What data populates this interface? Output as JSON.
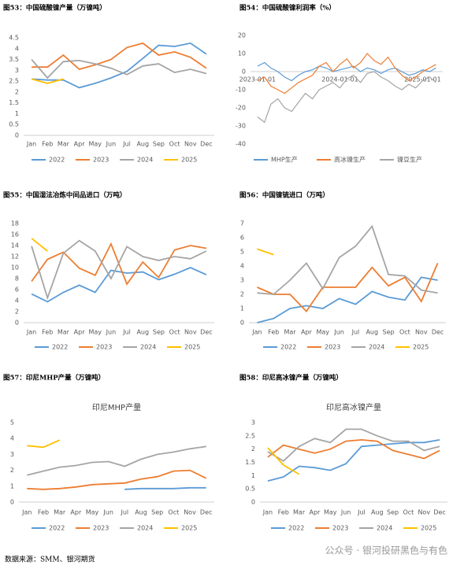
{
  "chart_data": [
    {
      "type": "line",
      "title": "图53：中国硫酸镍产量（万镍吨）",
      "categories": [
        "Jan",
        "Feb",
        "Mar",
        "Apr",
        "May",
        "Jun",
        "Jul",
        "Aug",
        "Sep",
        "Oct",
        "Nov",
        "Dec"
      ],
      "ylim": [
        0,
        4.5
      ],
      "yticks": [
        0,
        0.5,
        1,
        1.5,
        2,
        2.5,
        3,
        3.5,
        4,
        4.5
      ],
      "grid": false,
      "legend": "bottom",
      "series": [
        {
          "name": "2022",
          "color": "#5b9bd5",
          "values": [
            2.6,
            2.55,
            2.55,
            2.2,
            2.4,
            2.65,
            2.95,
            3.55,
            4.15,
            4.1,
            4.25,
            3.75
          ]
        },
        {
          "name": "2023",
          "color": "#ed7d31",
          "values": [
            3.15,
            3.15,
            3.7,
            3.05,
            3.25,
            3.5,
            4.05,
            4.25,
            3.7,
            3.85,
            3.6,
            3.1
          ]
        },
        {
          "name": "2024",
          "color": "#a5a5a5",
          "values": [
            3.5,
            2.65,
            3.4,
            3.45,
            3.3,
            3.1,
            2.8,
            3.2,
            3.3,
            2.9,
            3.05,
            2.85
          ]
        },
        {
          "name": "2025",
          "color": "#ffc000",
          "values": [
            2.6,
            2.4,
            2.6,
            null,
            null,
            null,
            null,
            null,
            null,
            null,
            null,
            null
          ]
        }
      ]
    },
    {
      "type": "line",
      "title": "图54：中国硫酸镍利润率（%）",
      "x": [
        "2023-01-01",
        "2023-02-01",
        "2023-03-01",
        "2023-04-01",
        "2023-05-01",
        "2023-06-01",
        "2023-07-01",
        "2023-08-01",
        "2023-09-01",
        "2023-10-01",
        "2023-11-01",
        "2023-12-01",
        "2024-01-01",
        "2024-02-01",
        "2024-03-01",
        "2024-04-01",
        "2024-05-01",
        "2024-06-01",
        "2024-07-01",
        "2024-08-01",
        "2024-09-01",
        "2024-10-01",
        "2024-11-01",
        "2024-12-01",
        "2025-01-01",
        "2025-02-01",
        "2025-03-01"
      ],
      "xlim": [
        "2022-12-01",
        "2025-03-31"
      ],
      "xticks": [
        "2023-01-01",
        "2024-01-01",
        "2025-01-01"
      ],
      "ylim": [
        -40,
        20
      ],
      "yticks": [
        20,
        10,
        0,
        -10,
        -20,
        -30,
        -40
      ],
      "grid": false,
      "legend": "bottom",
      "series": [
        {
          "name": "MHP生产",
          "color": "#5b9bd5",
          "values": [
            3,
            5,
            2,
            0,
            -3,
            -5,
            -2,
            0,
            1,
            3,
            2,
            0,
            1,
            2,
            3,
            0,
            2,
            1,
            -1,
            1,
            2,
            0,
            -2,
            -1,
            1,
            0,
            2
          ]
        },
        {
          "name": "高冰镍生产",
          "color": "#ed7d31",
          "values": [
            -5,
            -3,
            -8,
            -10,
            -12,
            -9,
            -6,
            -4,
            -2,
            3,
            5,
            0,
            4,
            7,
            2,
            5,
            10,
            6,
            4,
            8,
            2,
            -2,
            -5,
            -3,
            0,
            2,
            4
          ]
        },
        {
          "name": "镍豆生产",
          "color": "#a5a5a5",
          "values": [
            -25,
            -28,
            -18,
            -15,
            -20,
            -22,
            -17,
            -12,
            -15,
            -10,
            -8,
            -6,
            -9,
            -4,
            -2,
            -6,
            -1,
            0,
            -3,
            -5,
            -8,
            -10,
            -7,
            -9,
            -5,
            -3,
            -6
          ]
        }
      ]
    },
    {
      "type": "line",
      "title": "图55：中国湿法冶炼中间品进口（万吨）",
      "categories": [
        "Jan",
        "Feb",
        "Mar",
        "Apr",
        "May",
        "Jun",
        "Jul",
        "Aug",
        "Sep",
        "Oct",
        "Nov",
        "Dec"
      ],
      "ylim": [
        0,
        18
      ],
      "yticks": [
        0,
        2,
        4,
        6,
        8,
        10,
        12,
        14,
        16,
        18
      ],
      "grid": false,
      "legend": "bottom",
      "series": [
        {
          "name": "2022",
          "color": "#5b9bd5",
          "values": [
            5.2,
            3.8,
            5.5,
            6.8,
            5.5,
            9.5,
            9.0,
            9.2,
            7.8,
            8.8,
            10,
            8.7
          ]
        },
        {
          "name": "2023",
          "color": "#ed7d31",
          "values": [
            7.5,
            11.5,
            12.8,
            9.9,
            8.6,
            14.3,
            7.0,
            11.0,
            8.2,
            13.2,
            14.0,
            13.5
          ]
        },
        {
          "name": "2024",
          "color": "#a5a5a5",
          "values": [
            13.9,
            4.5,
            12.6,
            14.9,
            13.0,
            8.0,
            13.8,
            12.0,
            11.3,
            12.0,
            11.6,
            13.0
          ]
        },
        {
          "name": "2025",
          "color": "#ffc000",
          "values": [
            15.3,
            13.0,
            null,
            null,
            null,
            null,
            null,
            null,
            null,
            null,
            null,
            null
          ]
        }
      ]
    },
    {
      "type": "line",
      "title": "图56：中国镍锍进口（万吨）",
      "categories": [
        "Jan",
        "Feb",
        "Mar",
        "Apr",
        "May",
        "Jun",
        "Jul",
        "Aug",
        "Sep",
        "Oct",
        "Nov",
        "Dec"
      ],
      "ylim": [
        0,
        7
      ],
      "yticks": [
        0,
        1,
        2,
        3,
        4,
        5,
        6,
        7
      ],
      "grid": false,
      "legend": "bottom",
      "series": [
        {
          "name": "2022",
          "color": "#5b9bd5",
          "values": [
            0,
            0.3,
            1.0,
            1.2,
            1.0,
            1.7,
            1.3,
            2.2,
            1.8,
            1.6,
            3.2,
            3.0
          ]
        },
        {
          "name": "2023",
          "color": "#ed7d31",
          "values": [
            2.5,
            2.0,
            2.0,
            0.8,
            2.5,
            2.5,
            2.5,
            3.9,
            2.6,
            3.2,
            1.5,
            4.2
          ]
        },
        {
          "name": "2024",
          "color": "#a5a5a5",
          "values": [
            2.1,
            2.0,
            3.0,
            4.2,
            2.4,
            4.6,
            5.4,
            6.8,
            3.4,
            3.3,
            2.3,
            2.1
          ]
        },
        {
          "name": "2025",
          "color": "#ffc000",
          "values": [
            5.2,
            4.8,
            null,
            null,
            null,
            null,
            null,
            null,
            null,
            null,
            null,
            null
          ]
        }
      ]
    },
    {
      "type": "line",
      "title": "图57：印尼MHP产量（万镍吨）",
      "chart_title": "印尼MHP产量",
      "categories": [
        "Jan",
        "Feb",
        "Mar",
        "Apr",
        "May",
        "Jun",
        "Jul",
        "Aug",
        "Sep",
        "Oct",
        "Nov",
        "Dec"
      ],
      "ylim": [
        0,
        5
      ],
      "yticks": [
        0,
        1,
        2,
        3,
        4,
        5
      ],
      "grid": false,
      "legend": "bottom",
      "series": [
        {
          "name": "2022",
          "color": "#5b9bd5",
          "values": [
            null,
            null,
            null,
            null,
            null,
            null,
            0.8,
            0.85,
            0.85,
            0.85,
            0.9,
            0.9
          ]
        },
        {
          "name": "2023",
          "color": "#ed7d31",
          "values": [
            0.85,
            0.8,
            0.85,
            0.95,
            1.1,
            1.15,
            1.2,
            1.45,
            1.6,
            1.95,
            2.0,
            1.5
          ]
        },
        {
          "name": "2024",
          "color": "#a5a5a5",
          "values": [
            1.7,
            1.95,
            2.2,
            2.3,
            2.5,
            2.55,
            2.25,
            2.7,
            3.0,
            3.15,
            3.35,
            3.5
          ]
        },
        {
          "name": "2025",
          "color": "#ffc000",
          "values": [
            3.55,
            3.45,
            3.9,
            null,
            null,
            null,
            null,
            null,
            null,
            null,
            null,
            null
          ]
        }
      ]
    },
    {
      "type": "line",
      "title": "图58：印尼高冰镍产量（万镍吨）",
      "chart_title": "印尼高冰镍产量",
      "categories": [
        "Jan",
        "Feb",
        "Mar",
        "Apr",
        "May",
        "Jun",
        "Jul",
        "Aug",
        "Sep",
        "Oct",
        "Nov",
        "Dec"
      ],
      "ylim": [
        0,
        3
      ],
      "yticks": [
        0,
        0.5,
        1,
        1.5,
        2,
        2.5,
        3
      ],
      "grid": false,
      "legend": "bottom",
      "series": [
        {
          "name": "2022",
          "color": "#5b9bd5",
          "values": [
            0.8,
            0.95,
            1.35,
            1.3,
            1.2,
            1.45,
            2.1,
            2.15,
            2.2,
            2.25,
            2.25,
            2.35
          ]
        },
        {
          "name": "2023",
          "color": "#ed7d31",
          "values": [
            1.7,
            2.15,
            2.0,
            1.85,
            2.0,
            2.3,
            2.35,
            2.3,
            1.95,
            1.8,
            1.65,
            1.95
          ]
        },
        {
          "name": "2024",
          "color": "#a5a5a5",
          "values": [
            1.9,
            1.55,
            2.1,
            2.4,
            2.25,
            2.75,
            2.75,
            2.5,
            2.3,
            2.3,
            1.95,
            2.1
          ]
        },
        {
          "name": "2025",
          "color": "#ffc000",
          "values": [
            2.05,
            1.4,
            1.05,
            null,
            null,
            null,
            null,
            null,
            null,
            null,
            null,
            null
          ]
        }
      ]
    }
  ],
  "footer": {
    "source": "数据来源：SMM、银河期货",
    "watermark": "公众号 · 银河投研黑色与有色"
  }
}
